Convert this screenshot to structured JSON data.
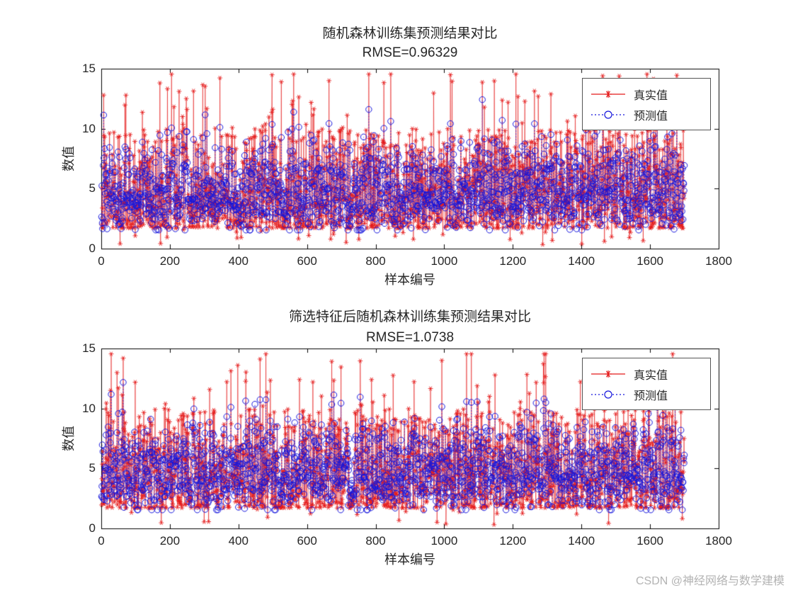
{
  "watermark": "CSDN @神经网络与数学建模",
  "chart_data": [
    {
      "type": "line",
      "title": "随机森林训练集预测结果对比",
      "subtitle": "RMSE=0.96329",
      "rmse_value": 0.96329,
      "xlabel": "样本编号",
      "ylabel": "数值",
      "xlim": [
        0,
        1800
      ],
      "ylim": [
        0,
        15
      ],
      "xticks": [
        0,
        200,
        400,
        600,
        800,
        1000,
        1200,
        1400,
        1600,
        1800
      ],
      "yticks": [
        0,
        5,
        10,
        15
      ],
      "legend_position": "top-right-inside",
      "grid": false,
      "series": [
        {
          "name": "真实值",
          "color": "#e41a1a",
          "marker": "asterisk",
          "linestyle": "solid"
        },
        {
          "name": "预测值",
          "color": "#1414dc",
          "marker": "circle",
          "linestyle": "dotted"
        }
      ],
      "data_spec": {
        "note": "dense stem-style scatter, values estimated from pixels",
        "n": 1700,
        "x_start": 1,
        "x_end": 1700,
        "seed": 101,
        "rmse": 0.96329,
        "y_mean": 4.7,
        "y_bulk_range": [
          2,
          9
        ],
        "y_spike_range": [
          10,
          14.5
        ],
        "spike_rate": 0.055
      }
    },
    {
      "type": "line",
      "title": "筛选特征后随机森林训练集预测结果对比",
      "subtitle": "RMSE=1.0738",
      "rmse_value": 1.0738,
      "xlabel": "样本编号",
      "ylabel": "数值",
      "xlim": [
        0,
        1800
      ],
      "ylim": [
        0,
        15
      ],
      "xticks": [
        0,
        200,
        400,
        600,
        800,
        1000,
        1200,
        1400,
        1600,
        1800
      ],
      "yticks": [
        0,
        5,
        10,
        15
      ],
      "legend_position": "top-right-inside",
      "grid": false,
      "series": [
        {
          "name": "真实值",
          "color": "#e41a1a",
          "marker": "asterisk",
          "linestyle": "solid"
        },
        {
          "name": "预测值",
          "color": "#1414dc",
          "marker": "circle",
          "linestyle": "dotted"
        }
      ],
      "data_spec": {
        "note": "dense stem-style scatter, values estimated from pixels",
        "n": 1700,
        "x_start": 1,
        "x_end": 1700,
        "seed": 202,
        "rmse": 1.0738,
        "y_mean": 4.7,
        "y_bulk_range": [
          2,
          9
        ],
        "y_spike_range": [
          10,
          14.5
        ],
        "spike_rate": 0.055
      }
    }
  ]
}
